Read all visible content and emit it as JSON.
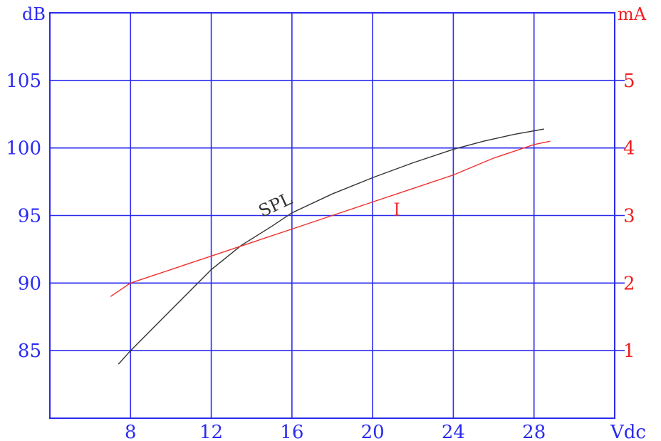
{
  "chart_data": {
    "type": "line",
    "x_unit": "Vdc",
    "left_unit": "dB",
    "right_unit": "mA",
    "xlim": [
      4,
      32
    ],
    "left_ylim": [
      80,
      110
    ],
    "right_ylim": [
      0,
      6
    ],
    "x_ticks": [
      {
        "value": 8,
        "label": "8"
      },
      {
        "value": 12,
        "label": "12"
      },
      {
        "value": 16,
        "label": "16"
      },
      {
        "value": 20,
        "label": "20"
      },
      {
        "value": 24,
        "label": "24"
      },
      {
        "value": 28,
        "label": "28"
      }
    ],
    "left_ticks": [
      {
        "value": 85,
        "label": "85"
      },
      {
        "value": 90,
        "label": "90"
      },
      {
        "value": 95,
        "label": "95"
      },
      {
        "value": 100,
        "label": "100"
      },
      {
        "value": 105,
        "label": "105"
      }
    ],
    "right_ticks": [
      {
        "value": 1,
        "label": "1"
      },
      {
        "value": 2,
        "label": "2"
      },
      {
        "value": 3,
        "label": "3"
      },
      {
        "value": 4,
        "label": "4"
      },
      {
        "value": 5,
        "label": "5"
      }
    ],
    "grid": true,
    "series": [
      {
        "name": "SPL",
        "axis": "left",
        "color": "#333333",
        "x": [
          7.4,
          8,
          10,
          12,
          13.5,
          15,
          16,
          18,
          20,
          22,
          24,
          25.5,
          27,
          28.5
        ],
        "y": [
          84.0,
          85.0,
          88.0,
          91.0,
          92.8,
          94.2,
          95.2,
          96.6,
          97.8,
          98.9,
          99.9,
          100.5,
          101.0,
          101.4
        ]
      },
      {
        "name": "I",
        "axis": "right",
        "color": "#f03030",
        "x": [
          7,
          8,
          10,
          12,
          14,
          16,
          18,
          20,
          22,
          24,
          26,
          28,
          28.8
        ],
        "y": [
          1.8,
          2.0,
          2.2,
          2.4,
          2.6,
          2.8,
          3.0,
          3.2,
          3.4,
          3.6,
          3.85,
          4.05,
          4.1
        ]
      }
    ],
    "annotations": [
      {
        "text": "SPL",
        "series": "SPL",
        "x": 15.3,
        "y": 95.4,
        "rotate": -25
      },
      {
        "text": "I",
        "series": "I",
        "x": 21.2,
        "y": 3.0,
        "rotate": 0
      }
    ]
  }
}
